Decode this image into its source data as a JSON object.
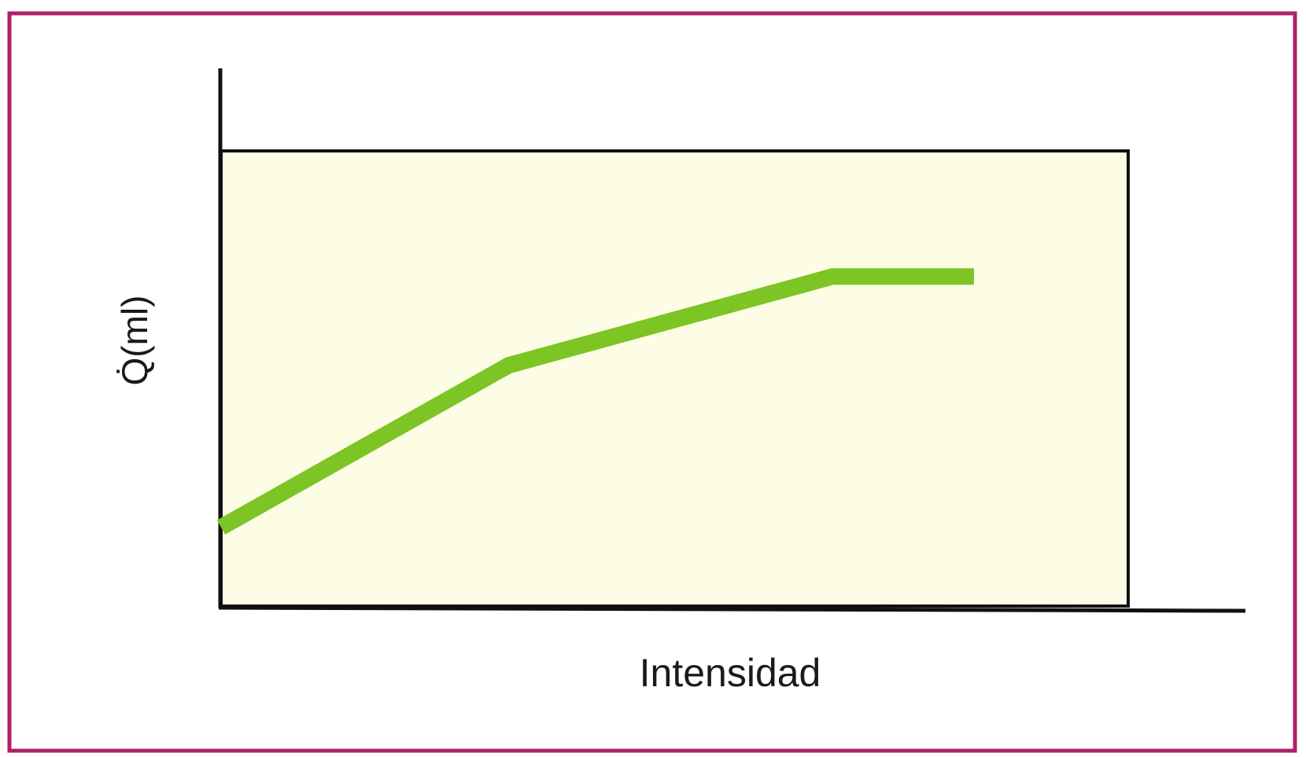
{
  "chart_data": {
    "type": "line",
    "x_label": "Intensidad",
    "y_label": "Q̇(ml)",
    "x": [
      0,
      31.7,
      67.4,
      83
    ],
    "series": [
      {
        "color": "#7cc524",
        "values": [
          17.3,
          52.9,
          72.4,
          72.4
        ]
      }
    ],
    "xlim": [
      0,
      100
    ],
    "ylim": [
      0,
      100
    ],
    "background": "#fdfde6",
    "frame_color": "#b0206a"
  }
}
